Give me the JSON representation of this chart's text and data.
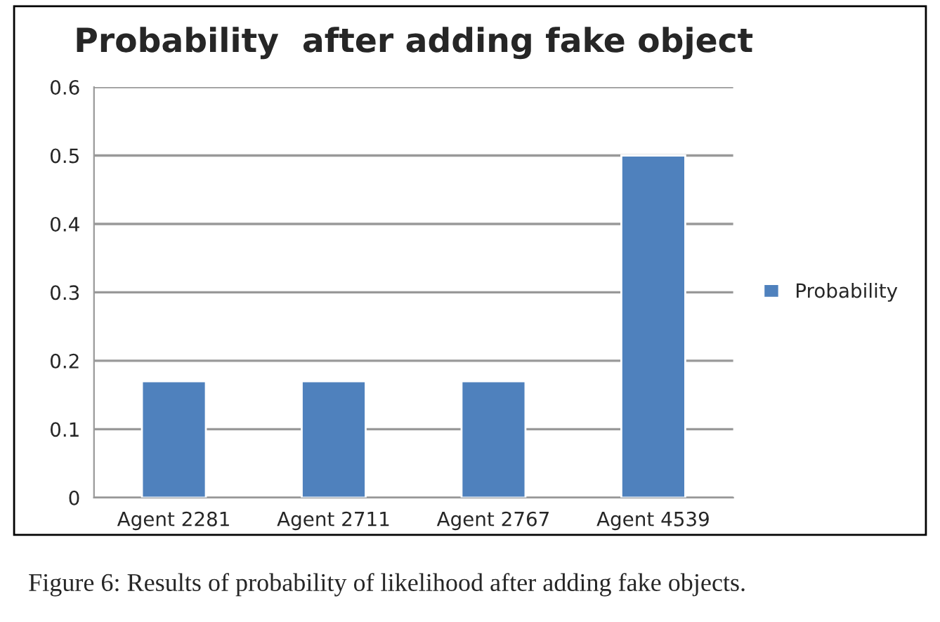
{
  "chart_data": {
    "type": "bar",
    "title": "Probability  after adding fake object",
    "categories": [
      "Agent 2281",
      "Agent 2711",
      "Agent 2767",
      "Agent 4539"
    ],
    "series": [
      {
        "name": "Probability",
        "color": "#4f81bd",
        "values": [
          0.17,
          0.17,
          0.17,
          0.5
        ]
      }
    ],
    "ylim": [
      0,
      0.6
    ],
    "yticks": [
      {
        "value": 0,
        "label": "0"
      },
      0.1,
      0.2,
      0.3,
      0.4,
      0.5,
      0.6
    ],
    "grid": "y",
    "legend": "right",
    "annotations": [
      "Figure 6: Results of probability of likelihood after adding fake objects."
    ]
  }
}
